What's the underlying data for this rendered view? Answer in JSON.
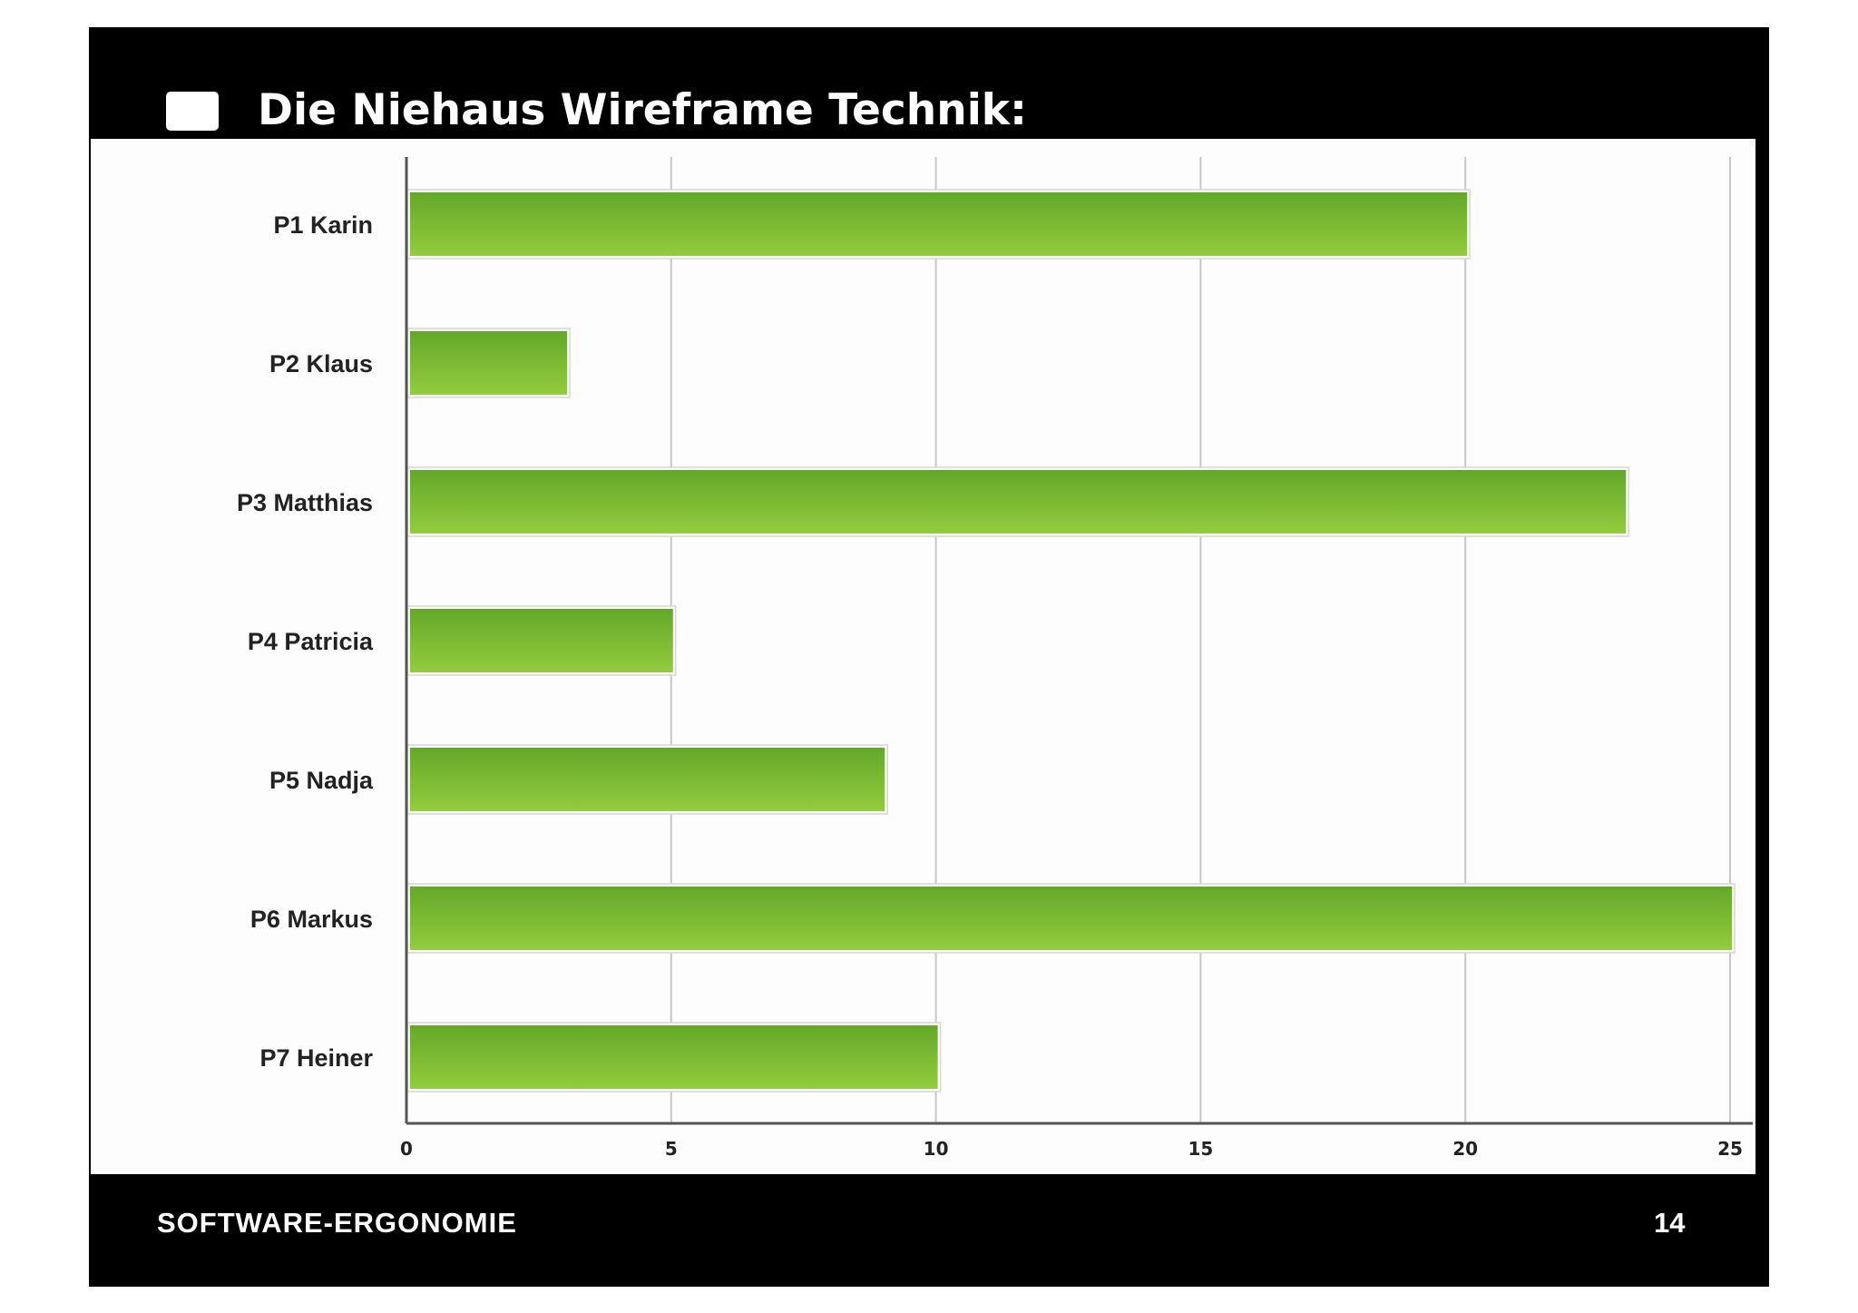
{
  "slide": {
    "title": "Die Niehaus Wireframe Technik:",
    "footer": "SOFTWARE-ERGONOMIE",
    "page_number": "14"
  },
  "colors": {
    "background": "#000000",
    "bar_top": "#63a829",
    "bar_bottom": "#93cc3d",
    "grid": "#c8c8c8",
    "axis": "#555555"
  },
  "chart_data": {
    "type": "bar",
    "orientation": "horizontal",
    "categories": [
      "P1 Karin",
      "P2 Klaus",
      "P3 Matthias",
      "P4 Patricia",
      "P5 Nadja",
      "P6 Markus",
      "P7 Heiner"
    ],
    "values": [
      20,
      3,
      23,
      5,
      9,
      25,
      10
    ],
    "xlim": [
      0,
      25
    ],
    "xticks": [
      "0",
      "5",
      "10",
      "15",
      "20",
      "25"
    ],
    "grid": true,
    "title": "",
    "xlabel": "",
    "ylabel": ""
  }
}
